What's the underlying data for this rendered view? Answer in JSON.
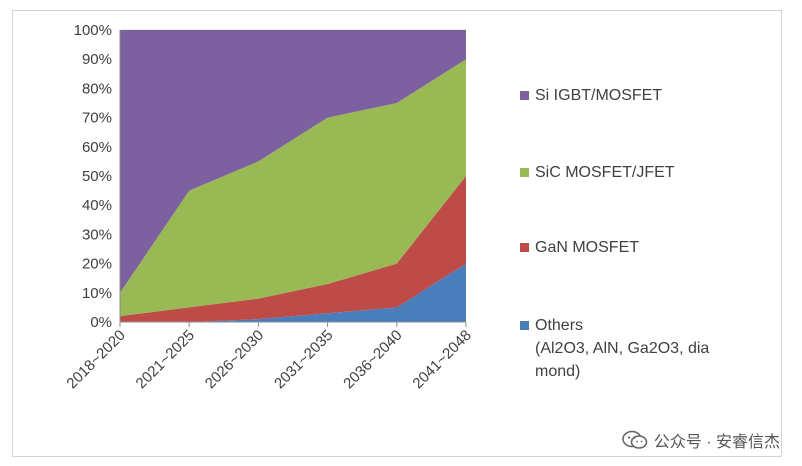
{
  "chart_data": {
    "type": "area",
    "stacked": true,
    "categories": [
      "2018~2020",
      "2021~2025",
      "2026~2030",
      "2031~2035",
      "2036~2040",
      "2041~2048"
    ],
    "y_tick_labels": [
      "0%",
      "10%",
      "20%",
      "30%",
      "40%",
      "50%",
      "60%",
      "70%",
      "80%",
      "90%",
      "100%"
    ],
    "ylim": [
      0,
      100
    ],
    "series": [
      {
        "name": "Others (Al2O3, AlN, Ga2O3, diamond)",
        "legend_lines": [
          "Others",
          "(Al2O3, AlN, Ga2O3, dia",
          "mond)"
        ],
        "color": "#4a7ebb",
        "values": [
          0,
          0,
          1,
          3,
          5,
          20
        ]
      },
      {
        "name": "GaN MOSFET",
        "color": "#be4b48",
        "values": [
          2,
          5,
          7,
          10,
          15,
          30
        ]
      },
      {
        "name": "SiC MOSFET/JFET",
        "color": "#98b954",
        "values": [
          8,
          40,
          47,
          57,
          55,
          40
        ]
      },
      {
        "name": "Si IGBT/MOSFET",
        "color": "#7d60a0",
        "values": [
          90,
          55,
          45,
          30,
          25,
          10
        ]
      }
    ],
    "legend_order": [
      "Si IGBT/MOSFET",
      "SiC MOSFET/JFET",
      "GaN MOSFET",
      "Others (Al2O3, AlN, Ga2O3, diamond)"
    ]
  },
  "watermark": {
    "text": "公众号 · 安睿信杰",
    "icon": "wechat-icon"
  }
}
